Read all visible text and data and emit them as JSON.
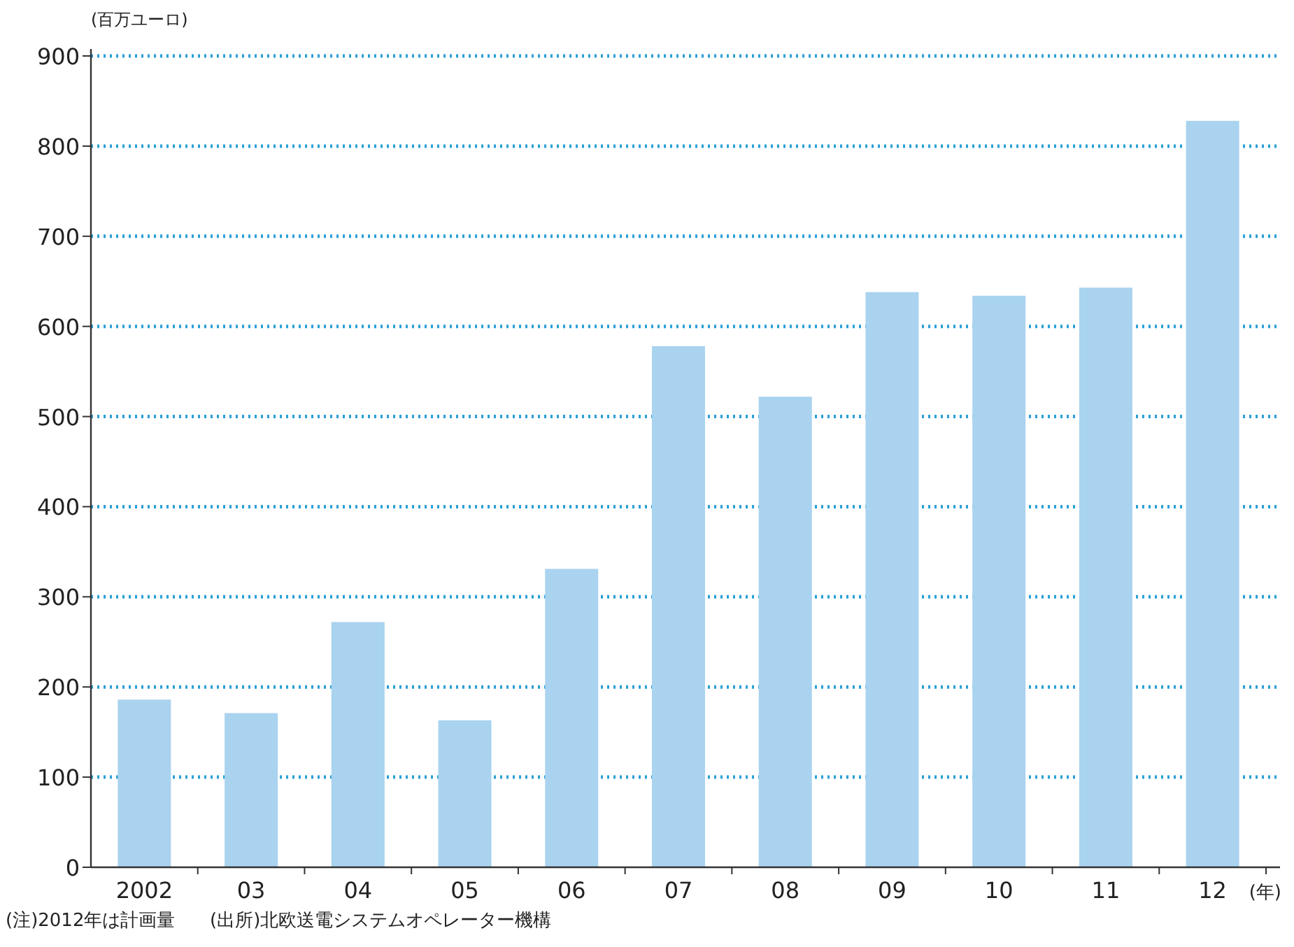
{
  "chart_data": {
    "type": "bar",
    "ylabel": "(百万ユーロ)",
    "xlabel": "(年)",
    "categories": [
      "2002",
      "03",
      "04",
      "05",
      "06",
      "07",
      "08",
      "09",
      "10",
      "11",
      "12"
    ],
    "values": [
      186,
      171,
      272,
      163,
      331,
      578,
      522,
      638,
      634,
      643,
      828
    ],
    "color": "#a9d3ef",
    "ylim": [
      0,
      900
    ],
    "yticks": [
      0,
      100,
      200,
      300,
      400,
      500,
      600,
      700,
      800,
      900
    ],
    "grid": "y",
    "annotations": [
      "(注)2012年は計画量",
      "(出所)北欧送電システムオペレーター機構"
    ]
  }
}
